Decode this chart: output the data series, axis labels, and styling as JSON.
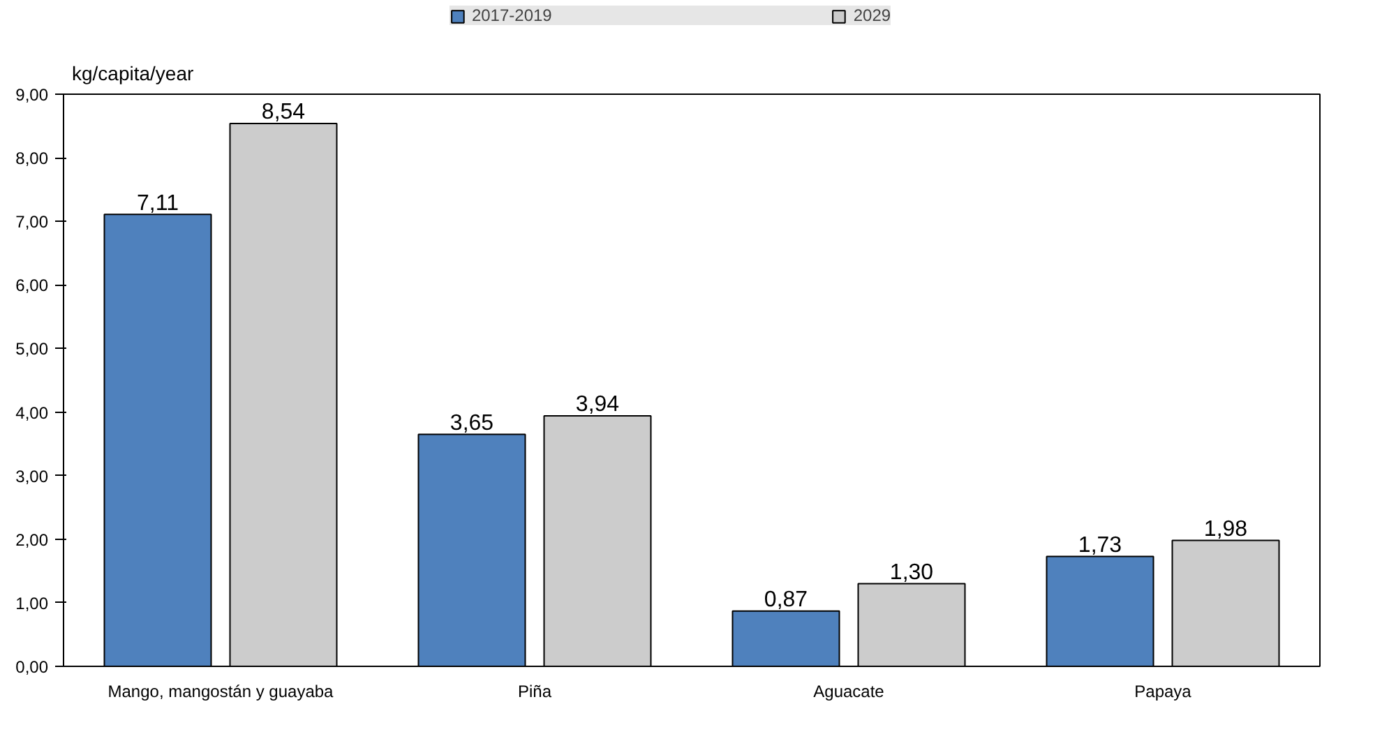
{
  "chart_data": {
    "type": "bar",
    "ylabel": "kg/capita/year",
    "categories": [
      "Mango, mangostán y guayaba",
      "Piña",
      "Aguacate",
      "Papaya"
    ],
    "series": [
      {
        "name": "2017-2019",
        "color": "#4f81bd",
        "values": [
          7.11,
          3.65,
          0.87,
          1.73
        ],
        "value_labels": [
          "7,11",
          "3,65",
          "0,87",
          "1,73"
        ]
      },
      {
        "name": "2029",
        "color": "#cccccc",
        "values": [
          8.54,
          3.94,
          1.3,
          1.98
        ],
        "value_labels": [
          "8,54",
          "3,94",
          "1,30",
          "1,98"
        ]
      }
    ],
    "ylim": [
      0,
      9
    ],
    "yticks": [
      {
        "value": 0,
        "label": "0,00"
      },
      {
        "value": 1,
        "label": "1,00"
      },
      {
        "value": 2,
        "label": "2,00"
      },
      {
        "value": 3,
        "label": "3,00"
      },
      {
        "value": 4,
        "label": "4,00"
      },
      {
        "value": 5,
        "label": "5,00"
      },
      {
        "value": 6,
        "label": "6,00"
      },
      {
        "value": 7,
        "label": "7,00"
      },
      {
        "value": 8,
        "label": "8,00"
      },
      {
        "value": 9,
        "label": "9,00"
      }
    ],
    "grid": false,
    "legend": "top"
  }
}
